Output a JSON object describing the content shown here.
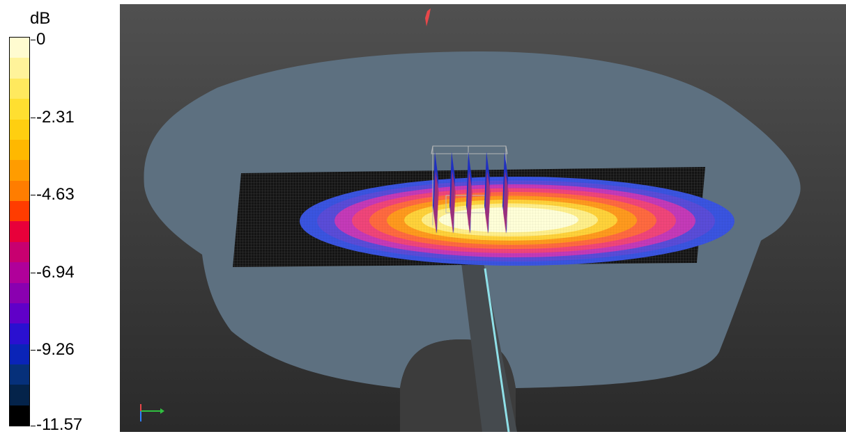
{
  "legend": {
    "unit": "dB",
    "ticks": [
      "0",
      "-2.31",
      "-4.63",
      "-6.94",
      "-9.26",
      "-11.57"
    ],
    "swatch_colors": [
      "#fffbd0",
      "#fff39a",
      "#ffe95e",
      "#ffdf30",
      "#ffcf10",
      "#ffb800",
      "#ff9c00",
      "#ff7d00",
      "#ff3c00",
      "#e8003a",
      "#c80070",
      "#b0009a",
      "#8a00b0",
      "#6000c8",
      "#2a10d0",
      "#0a24b8",
      "#06307a",
      "#04234a",
      "#000000"
    ]
  },
  "viewport": {
    "background_top": "#505050",
    "background_bottom": "#2a2a2a",
    "phantom_color": "#5d7080",
    "field_colors": [
      "#ffffd8",
      "#ffef8a",
      "#ffd23a",
      "#ff9a1e",
      "#ff6a40",
      "#f0457a",
      "#c43ab8",
      "#5a4cd8",
      "#3a54e0"
    ],
    "probe_color": "#8fe0e8",
    "antenna_colors": [
      "#2030c0",
      "#c0306a"
    ]
  }
}
